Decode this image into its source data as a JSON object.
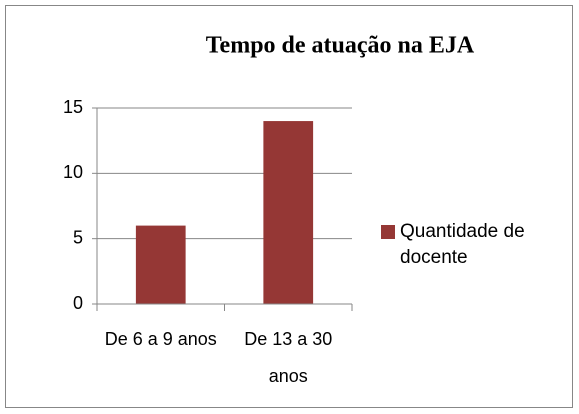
{
  "chart_data": {
    "type": "bar",
    "title": "Tempo de atuação na EJA",
    "categories": [
      "De 6 a 9 anos",
      "De 13 a 30 anos"
    ],
    "series": [
      {
        "name": "Quantidade de docente",
        "color": "#953735",
        "values": [
          6,
          14
        ]
      }
    ],
    "ylim": [
      0,
      15
    ],
    "yticks": [
      0,
      5,
      10,
      15
    ],
    "grid": true,
    "legend": "right"
  }
}
